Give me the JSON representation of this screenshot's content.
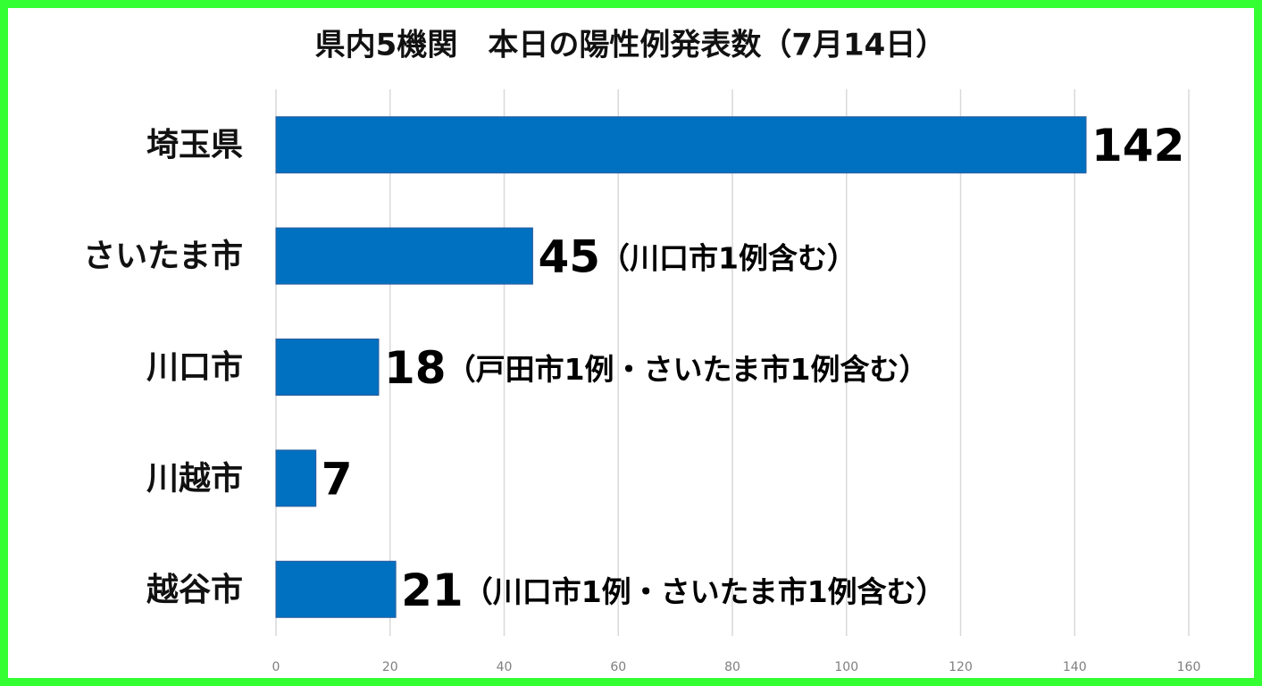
{
  "chart_data": {
    "type": "hbar",
    "title": "県内5機関　本日の陽性例発表数（7月14日）",
    "categories": [
      "埼玉県",
      "さいたま市",
      "川口市",
      "川越市",
      "越谷市"
    ],
    "values": [
      142,
      45,
      18,
      7,
      21
    ],
    "value_notes": [
      null,
      "（川口市1例含む）",
      "（戸田市1例・さいたま市1例含む）",
      null,
      "（川口市1例・さいたま市1例含む）"
    ],
    "color": "#0070c0",
    "xlim": [
      0,
      160
    ],
    "xticks": [
      0,
      20,
      40,
      60,
      80,
      100,
      120,
      140,
      160
    ],
    "grid": true
  }
}
